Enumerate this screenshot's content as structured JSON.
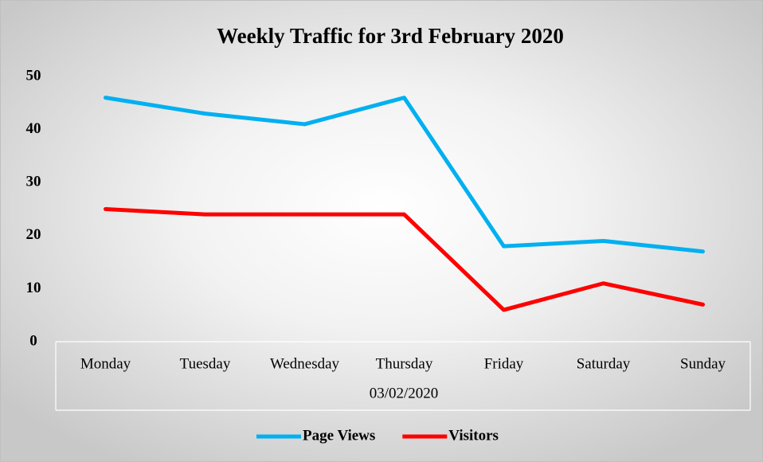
{
  "chart_data": {
    "type": "line",
    "title": "Weekly Traffic for 3rd February 2020",
    "categories": [
      "Monday",
      "Tuesday",
      "Wednesday",
      "Thursday",
      "Friday",
      "Saturday",
      "Sunday"
    ],
    "xlabel": "03/02/2020",
    "series": [
      {
        "name": "Page Views",
        "color": "#00b0f0",
        "values": [
          46,
          43,
          41,
          46,
          18,
          19,
          17
        ]
      },
      {
        "name": "Visitors",
        "color": "#ff0000",
        "values": [
          25,
          24,
          24,
          24,
          6,
          11,
          7
        ]
      }
    ],
    "ylim": [
      0,
      50
    ],
    "yticks": [
      0,
      10,
      20,
      30,
      40,
      50
    ],
    "grid": false,
    "legend": "bottom"
  }
}
